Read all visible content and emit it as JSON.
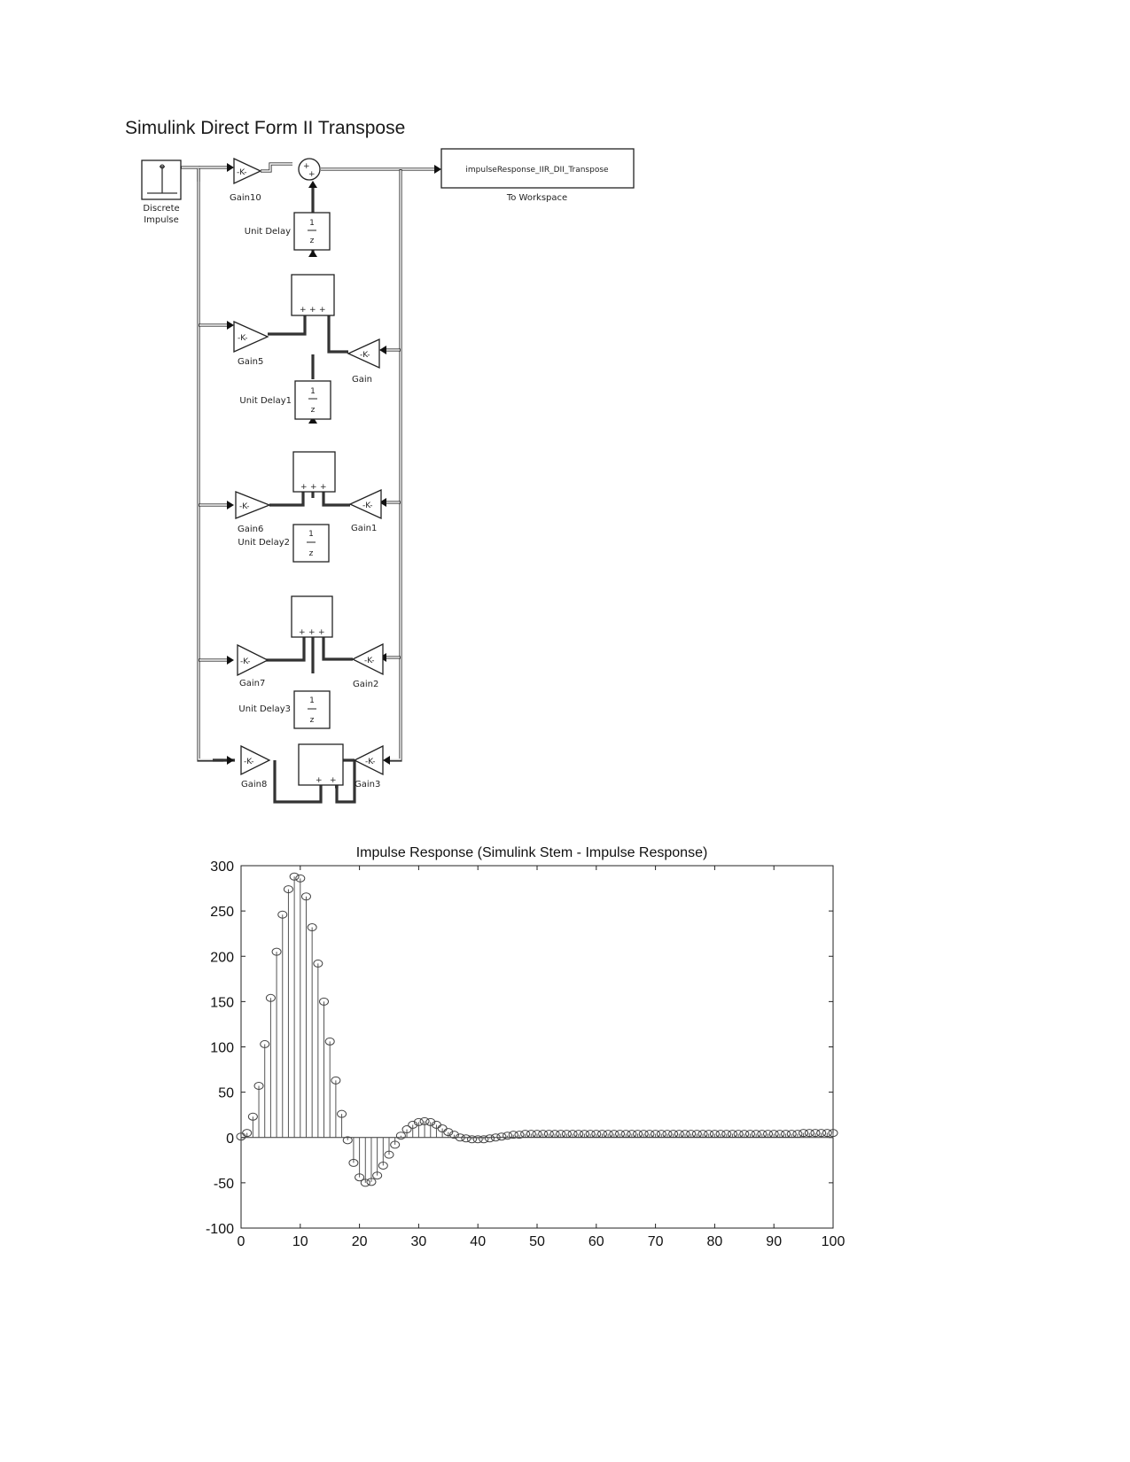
{
  "page_title": "Simulink Direct Form II Transpose",
  "diagram": {
    "blocks": {
      "discrete_impulse": {
        "line1": "Discrete",
        "line2": "Impulse"
      },
      "to_workspace": {
        "variable": "impulseResponse_IIR_DII_Transpose",
        "label": "To Workspace"
      },
      "gains": {
        "gain10": "Gain10",
        "gain5": "Gain5",
        "gain6": "Gain6",
        "gain7": "Gain7",
        "gain8": "Gain8",
        "gain": "Gain",
        "gain1": "Gain1",
        "gain2": "Gain2",
        "gain3": "Gain3"
      },
      "gain_value": "-K-",
      "delays": {
        "d0": "Unit Delay",
        "d1": "Unit Delay1",
        "d2": "Unit Delay2",
        "d3": "Unit Delay3"
      },
      "delay_num": "1",
      "delay_den": "z",
      "sum_sign": "+"
    }
  },
  "chart_data": {
    "type": "stem",
    "title": "Impulse Response (Simulink Stem - Impulse Response)",
    "xlim": [
      0,
      100
    ],
    "ylim": [
      -100,
      300
    ],
    "xticks": [
      0,
      10,
      20,
      30,
      40,
      50,
      60,
      70,
      80,
      90,
      100
    ],
    "yticks": [
      -100,
      -50,
      0,
      50,
      100,
      150,
      200,
      250,
      300
    ],
    "x": [
      0,
      1,
      2,
      3,
      4,
      5,
      6,
      7,
      8,
      9,
      10,
      11,
      12,
      13,
      14,
      15,
      16,
      17,
      18,
      19,
      20,
      21,
      22,
      23,
      24,
      25,
      26,
      27,
      28,
      29,
      30,
      31,
      32,
      33,
      34,
      35,
      36,
      37,
      38,
      39,
      40,
      41,
      42,
      43,
      44,
      45,
      46,
      47,
      48,
      49,
      50,
      51,
      52,
      53,
      54,
      55,
      56,
      57,
      58,
      59,
      60,
      61,
      62,
      63,
      64,
      65,
      66,
      67,
      68,
      69,
      70,
      71,
      72,
      73,
      74,
      75,
      76,
      77,
      78,
      79,
      80,
      81,
      82,
      83,
      84,
      85,
      86,
      87,
      88,
      89,
      90,
      91,
      92,
      93,
      94,
      95,
      96,
      97,
      98,
      99,
      100
    ],
    "y": [
      1,
      5,
      23,
      57,
      103,
      154,
      205,
      246,
      274,
      288,
      286,
      266,
      232,
      192,
      150,
      106,
      63,
      26,
      -3,
      -28,
      -44,
      -50,
      -49,
      -42,
      -31,
      -19,
      -8,
      2,
      9,
      14,
      17,
      18,
      17,
      14,
      10,
      6,
      3,
      0,
      -1,
      -2,
      -2,
      -2,
      -1,
      0,
      1,
      2,
      3,
      3,
      4,
      4,
      4,
      4,
      4,
      4,
      4,
      4,
      4,
      4,
      4,
      4,
      4,
      4,
      4,
      4,
      4,
      4,
      4,
      4,
      4,
      4,
      4,
      4,
      4,
      4,
      4,
      4,
      4,
      4,
      4,
      4,
      4,
      4,
      4,
      4,
      4,
      4,
      4,
      4,
      4,
      4,
      4,
      4,
      4,
      4,
      4,
      5,
      5,
      5,
      5,
      5,
      5
    ]
  }
}
